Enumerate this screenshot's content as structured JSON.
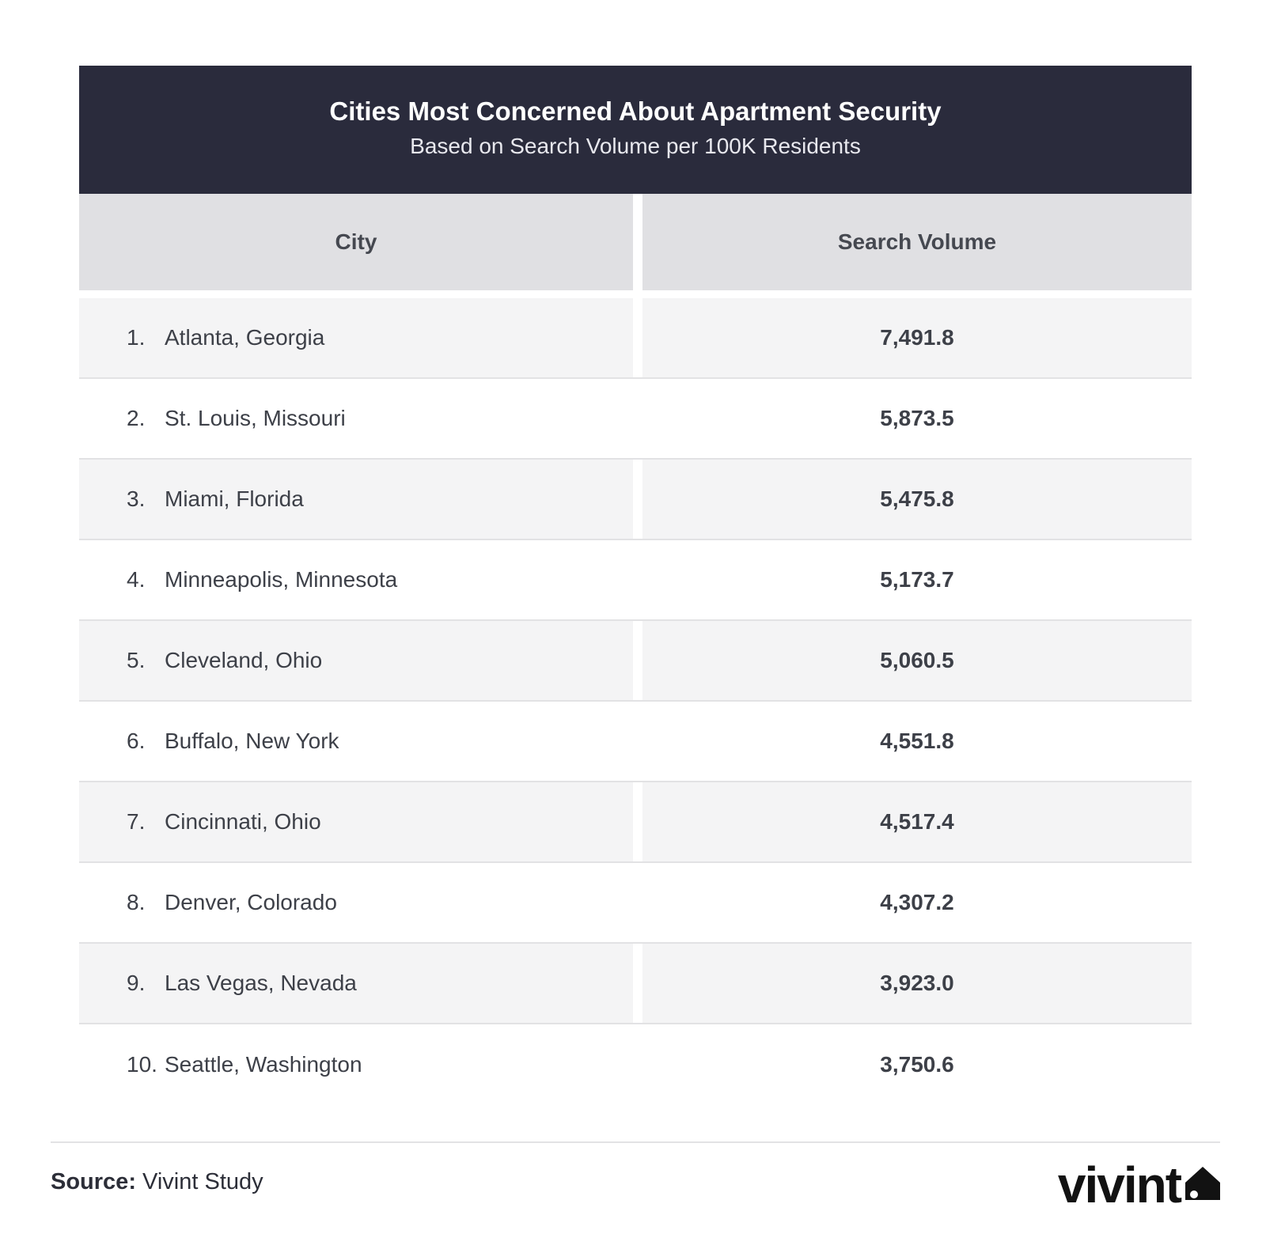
{
  "chart_data": {
    "type": "table",
    "title": "Cities Most Concerned About Apartment Security",
    "subtitle": "Based on Search Volume per 100K Residents",
    "columns": [
      "City",
      "Search Volume"
    ],
    "rows": [
      {
        "rank": "1.",
        "city": "Atlanta, Georgia",
        "value": "7,491.8"
      },
      {
        "rank": "2.",
        "city": "St. Louis, Missouri",
        "value": "5,873.5"
      },
      {
        "rank": "3.",
        "city": "Miami, Florida",
        "value": "5,475.8"
      },
      {
        "rank": "4.",
        "city": "Minneapolis, Minnesota",
        "value": "5,173.7"
      },
      {
        "rank": "5.",
        "city": "Cleveland, Ohio",
        "value": "5,060.5"
      },
      {
        "rank": "6.",
        "city": "Buffalo, New York",
        "value": "4,551.8"
      },
      {
        "rank": "7.",
        "city": "Cincinnati, Ohio",
        "value": "4,517.4"
      },
      {
        "rank": "8.",
        "city": "Denver, Colorado",
        "value": "4,307.2"
      },
      {
        "rank": "9.",
        "city": "Las Vegas, Nevada",
        "value": "3,923.0"
      },
      {
        "rank": "10.",
        "city": "Seattle, Washington",
        "value": "3,750.6"
      }
    ]
  },
  "footer": {
    "source_label": "Source:",
    "source_text": "Vivint Study",
    "logo_text": "vivint",
    "logo_icon": "house-icon"
  },
  "colors": {
    "header_bg": "#2a2b3c",
    "column_header_bg": "#e0e0e3",
    "shaded_row_bg": "#f4f4f5"
  }
}
